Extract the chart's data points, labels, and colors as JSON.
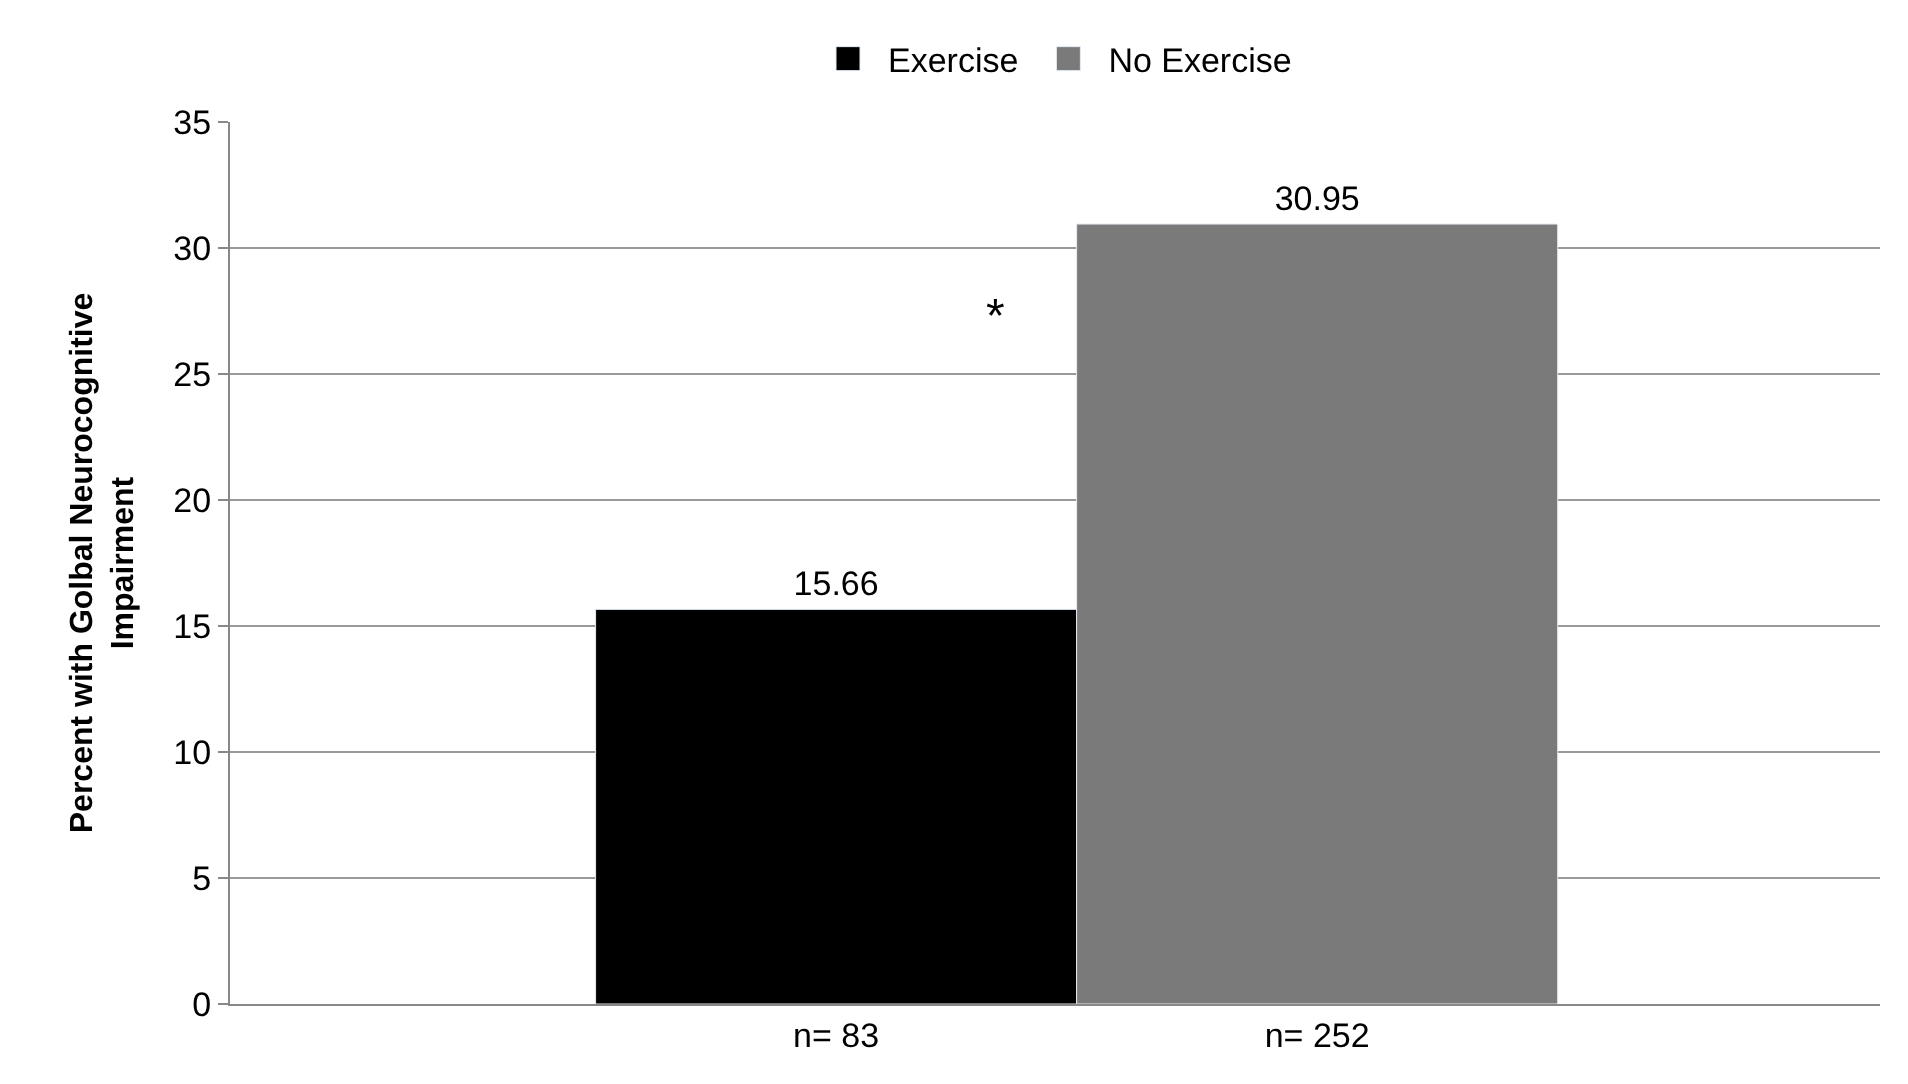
{
  "chart_data": {
    "type": "bar",
    "ylabel": "Percent with Golbal Neurocognitive Impairment",
    "categories": [
      "n= 83",
      "n= 252"
    ],
    "series": [
      {
        "name": "Exercise",
        "color": "#000000",
        "values": [
          15.66,
          null
        ]
      },
      {
        "name": "No Exercise",
        "color": "#7a7a7a",
        "values": [
          null,
          30.95
        ]
      }
    ],
    "ylim": [
      0,
      35
    ],
    "yticks": [
      0,
      5,
      10,
      15,
      20,
      25,
      30,
      35
    ],
    "grid": "y",
    "legend": "top",
    "data_labels": true,
    "annotations": [
      "*"
    ]
  }
}
